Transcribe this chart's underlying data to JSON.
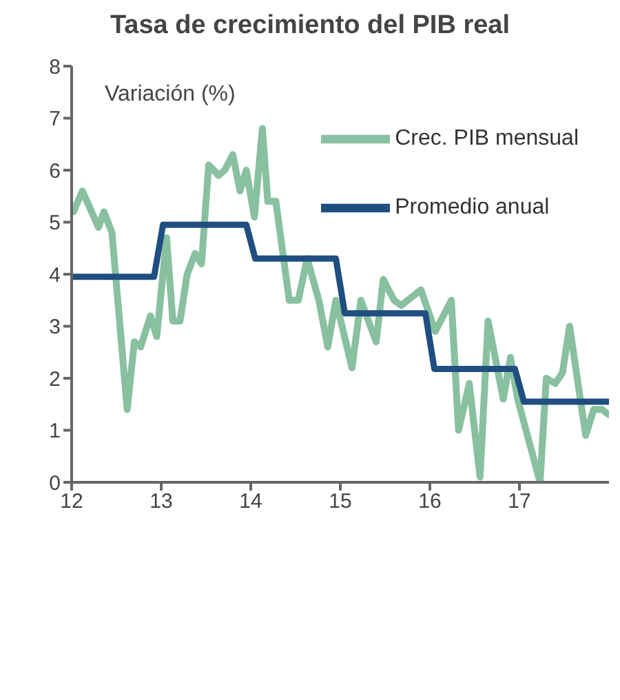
{
  "chart_data": {
    "type": "line",
    "title": "Tasa de crecimiento del PIB real",
    "ylabel": "Variación (%)",
    "xlim": [
      12,
      18
    ],
    "xticks": [
      12,
      13,
      14,
      15,
      16,
      17
    ],
    "ylim": [
      0,
      8
    ],
    "yticks": [
      0,
      1,
      2,
      3,
      4,
      5,
      6,
      7,
      8
    ],
    "grid": false,
    "legend": "top right",
    "marker": "none",
    "line_style": "solid",
    "series": [
      {
        "name": "Crec. PIB mensual",
        "color": "#88c0a0",
        "x": [
          12.02,
          12.12,
          12.3,
          12.36,
          12.45,
          12.62,
          12.7,
          12.77,
          12.88,
          12.95,
          13.06,
          13.13,
          13.21,
          13.29,
          13.38,
          13.45,
          13.53,
          13.64,
          13.71,
          13.8,
          13.88,
          13.95,
          14.04,
          14.13,
          14.19,
          14.28,
          14.43,
          14.53,
          14.63,
          14.76,
          14.86,
          14.95,
          15.13,
          15.23,
          15.4,
          15.48,
          15.6,
          15.68,
          15.9,
          16.06,
          16.24,
          16.32,
          16.44,
          16.56,
          16.65,
          16.82,
          16.9,
          16.98,
          17.23,
          17.3,
          17.4,
          17.48,
          17.56,
          17.74,
          17.83,
          17.92,
          18.0
        ],
        "values": [
          5.2,
          5.6,
          4.9,
          5.2,
          4.8,
          1.4,
          2.7,
          2.6,
          3.2,
          2.8,
          4.7,
          3.1,
          3.1,
          4.0,
          4.4,
          4.2,
          6.1,
          5.9,
          6.0,
          6.3,
          5.6,
          6.0,
          5.1,
          6.8,
          5.4,
          5.4,
          3.5,
          3.5,
          4.3,
          3.5,
          2.6,
          3.5,
          2.2,
          3.5,
          2.7,
          3.9,
          3.5,
          3.4,
          3.7,
          2.9,
          3.5,
          1.0,
          1.9,
          0.1,
          3.1,
          1.6,
          2.4,
          1.6,
          0.0,
          2.0,
          1.9,
          2.1,
          3.0,
          0.9,
          1.4,
          1.4,
          1.3
        ]
      },
      {
        "name": "Promedio anual",
        "color": "#1f4e80",
        "x": [
          12.0,
          12.92,
          13.02,
          13.95,
          14.05,
          14.95,
          15.05,
          15.95,
          16.05,
          16.95,
          17.05,
          18.0
        ],
        "values": [
          3.95,
          3.95,
          4.95,
          4.95,
          4.3,
          4.3,
          3.25,
          3.25,
          2.18,
          2.18,
          1.55,
          1.55
        ]
      }
    ]
  }
}
